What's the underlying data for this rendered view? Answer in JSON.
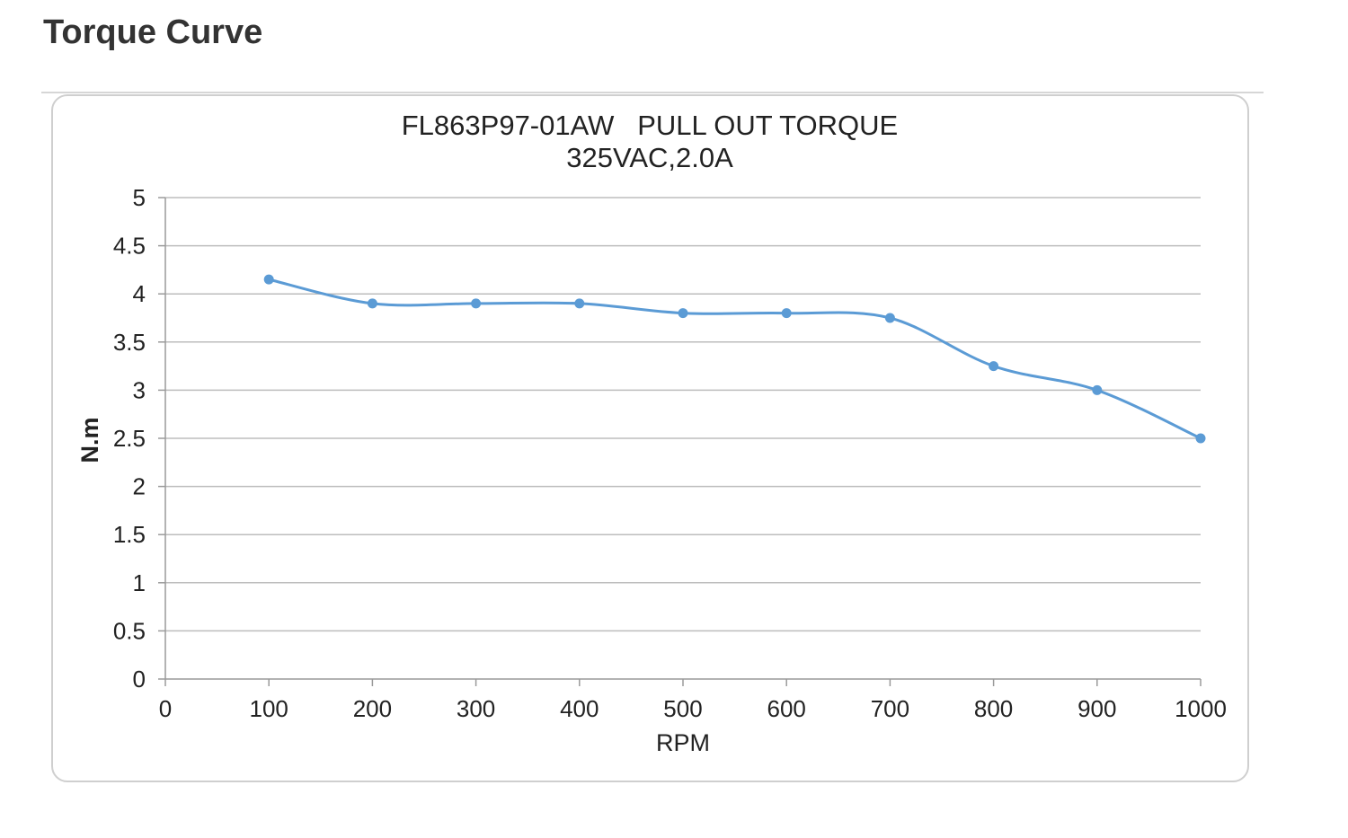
{
  "page": {
    "heading": "Torque Curve"
  },
  "chart_data": {
    "type": "line",
    "title": "FL863P97-01AW   PULL OUT TORQUE",
    "subtitle": "325VAC,2.0A",
    "xlabel": "RPM",
    "ylabel": "N.m",
    "xlim": [
      0,
      1000
    ],
    "ylim": [
      0,
      5
    ],
    "x_ticks": [
      "0",
      "100",
      "200",
      "300",
      "400",
      "500",
      "600",
      "700",
      "800",
      "900",
      "1000"
    ],
    "y_ticks": [
      "0",
      "0.5",
      "1",
      "1.5",
      "2",
      "2.5",
      "3",
      "3.5",
      "4",
      "4.5",
      "5"
    ],
    "grid": true,
    "legend": "none",
    "series": [
      {
        "x": [
          100,
          200,
          300,
          400,
          500,
          600,
          700,
          800,
          900,
          1000
        ],
        "values": [
          4.15,
          3.9,
          3.9,
          3.9,
          3.8,
          3.8,
          3.75,
          3.25,
          3.0,
          2.5
        ],
        "color": "#5b9bd5"
      }
    ]
  }
}
